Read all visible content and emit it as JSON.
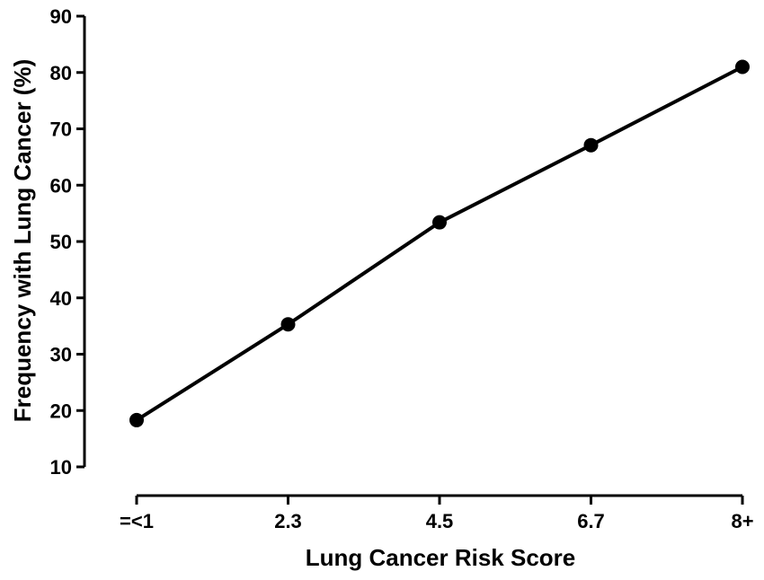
{
  "chart_data": {
    "type": "line",
    "title": "",
    "xlabel": "Lung Cancer Risk Score",
    "ylabel": "Frequency with Lung Cancer (%)",
    "categories": [
      "=<1",
      "2.3",
      "4.5",
      "6.7",
      "8+"
    ],
    "series": [
      {
        "values": [
          18.3,
          35.3,
          53.4,
          67.1,
          81.0
        ]
      }
    ],
    "ylim": [
      10,
      90
    ],
    "yticks": [
      10,
      20,
      30,
      40,
      50,
      60,
      70,
      80,
      90
    ],
    "grid": false,
    "colors": {
      "line": "#000000",
      "marker": "#000000"
    }
  }
}
